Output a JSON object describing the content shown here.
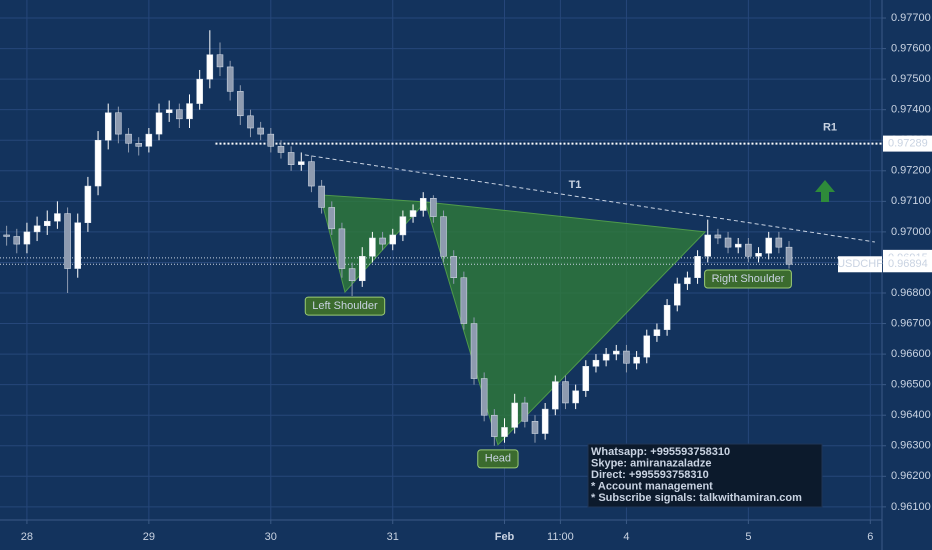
{
  "chart_data": {
    "type": "candlestick",
    "symbol": "USDCHF",
    "up_color": "#ffffff",
    "down_color": "#8e9bb0",
    "grid": true,
    "x": [
      -4,
      -2,
      0,
      2,
      4,
      6,
      8,
      10,
      12,
      14,
      16,
      18,
      20,
      22,
      24,
      26,
      28,
      30,
      32,
      34,
      36,
      38,
      40,
      42,
      44,
      46,
      48,
      50,
      52,
      54,
      56,
      58,
      60,
      62,
      64,
      66,
      68,
      70,
      72,
      74,
      76,
      78,
      80,
      82,
      84,
      86,
      88,
      90,
      92,
      94,
      96,
      98,
      100,
      102,
      104,
      106,
      108,
      110,
      112,
      114,
      116,
      118,
      120,
      122,
      124,
      126,
      128,
      130,
      132,
      134,
      136,
      138,
      140,
      142,
      144,
      146,
      148,
      150
    ],
    "open": [
      0.9699,
      0.96985,
      0.9696,
      0.97,
      0.9702,
      0.97035,
      0.9706,
      0.9688,
      0.9703,
      0.9715,
      0.973,
      0.9739,
      0.9732,
      0.9729,
      0.9728,
      0.9732,
      0.9739,
      0.974,
      0.9737,
      0.9742,
      0.975,
      0.9758,
      0.9754,
      0.9746,
      0.9738,
      0.9734,
      0.9732,
      0.9728,
      0.9726,
      0.9722,
      0.9723,
      0.9715,
      0.9708,
      0.9701,
      0.9688,
      0.9684,
      0.9692,
      0.9698,
      0.9696,
      0.9699,
      0.9705,
      0.9707,
      0.9711,
      0.9705,
      0.9692,
      0.9685,
      0.967,
      0.9652,
      0.964,
      0.9633,
      0.9636,
      0.9644,
      0.9638,
      0.9634,
      0.9642,
      0.9651,
      0.9644,
      0.9648,
      0.9656,
      0.9658,
      0.966,
      0.9661,
      0.9657,
      0.9659,
      0.9666,
      0.9668,
      0.9676,
      0.9683,
      0.9685,
      0.9692,
      0.9699,
      0.9698,
      0.9695,
      0.9696,
      0.9692,
      0.9693,
      0.9698,
      0.9695
    ],
    "high": [
      0.9702,
      0.9701,
      0.9703,
      0.9705,
      0.9707,
      0.971,
      0.9708,
      0.9706,
      0.9718,
      0.9733,
      0.9742,
      0.9741,
      0.9734,
      0.9731,
      0.9734,
      0.9742,
      0.9743,
      0.9742,
      0.9745,
      0.9753,
      0.9766,
      0.9762,
      0.9756,
      0.9748,
      0.974,
      0.9736,
      0.9734,
      0.973,
      0.9728,
      0.9726,
      0.9725,
      0.9717,
      0.971,
      0.9703,
      0.969,
      0.9695,
      0.97,
      0.97,
      0.9701,
      0.9707,
      0.9709,
      0.9713,
      0.9712,
      0.9707,
      0.9694,
      0.9687,
      0.9672,
      0.9654,
      0.9642,
      0.9639,
      0.9647,
      0.9646,
      0.964,
      0.9644,
      0.9653,
      0.9653,
      0.965,
      0.9658,
      0.966,
      0.9662,
      0.9663,
      0.9663,
      0.9661,
      0.9668,
      0.967,
      0.9678,
      0.9685,
      0.9687,
      0.9694,
      0.9704,
      0.9701,
      0.97,
      0.9698,
      0.9698,
      0.9695,
      0.97,
      0.97,
      0.9697
    ],
    "low": [
      0.96955,
      0.9693,
      0.9693,
      0.9697,
      0.9699,
      0.9701,
      0.968,
      0.9685,
      0.97,
      0.9712,
      0.9727,
      0.9729,
      0.9726,
      0.9725,
      0.9726,
      0.973,
      0.9736,
      0.9734,
      0.9734,
      0.974,
      0.9747,
      0.9751,
      0.9743,
      0.9735,
      0.9731,
      0.973,
      0.9726,
      0.9724,
      0.972,
      0.972,
      0.9713,
      0.9706,
      0.9699,
      0.9685,
      0.9679,
      0.9682,
      0.969,
      0.9694,
      0.9694,
      0.9697,
      0.9703,
      0.9705,
      0.9703,
      0.969,
      0.9683,
      0.9668,
      0.965,
      0.9638,
      0.963,
      0.9631,
      0.9634,
      0.9636,
      0.9631,
      0.9632,
      0.964,
      0.9642,
      0.9642,
      0.9646,
      0.9654,
      0.9656,
      0.9658,
      0.9654,
      0.9655,
      0.9657,
      0.9664,
      0.9666,
      0.9674,
      0.9681,
      0.9683,
      0.969,
      0.9696,
      0.9693,
      0.9693,
      0.969,
      0.969,
      0.9691,
      0.9693,
      0.9688
    ],
    "close": [
      0.96985,
      0.9696,
      0.97,
      0.9702,
      0.97035,
      0.9706,
      0.9688,
      0.9703,
      0.9715,
      0.973,
      0.9739,
      0.9732,
      0.9729,
      0.9728,
      0.9732,
      0.9739,
      0.974,
      0.9737,
      0.9742,
      0.975,
      0.9758,
      0.9754,
      0.9746,
      0.9738,
      0.9734,
      0.9732,
      0.9728,
      0.9726,
      0.9722,
      0.9723,
      0.9715,
      0.9708,
      0.9701,
      0.9688,
      0.9684,
      0.9692,
      0.9698,
      0.9696,
      0.9699,
      0.9705,
      0.9707,
      0.9711,
      0.9705,
      0.9692,
      0.9685,
      0.967,
      0.9652,
      0.964,
      0.9633,
      0.9636,
      0.9644,
      0.9638,
      0.9634,
      0.9642,
      0.9651,
      0.9644,
      0.9648,
      0.9656,
      0.9658,
      0.966,
      0.9661,
      0.9657,
      0.9659,
      0.9666,
      0.9668,
      0.9676,
      0.9683,
      0.9685,
      0.9692,
      0.9699,
      0.9698,
      0.9695,
      0.9696,
      0.9692,
      0.9693,
      0.9698,
      0.9695,
      0.96894
    ],
    "xlim": [
      -5.3,
      168.3
    ],
    "xticks": [
      {
        "value": 0,
        "label": "28"
      },
      {
        "value": 24,
        "label": "29"
      },
      {
        "value": 48,
        "label": "30"
      },
      {
        "value": 72,
        "label": "31"
      },
      {
        "value": 94,
        "label": "Feb"
      },
      {
        "value": 105,
        "label": "11:00"
      },
      {
        "value": 118,
        "label": "4"
      },
      {
        "value": 142,
        "label": "5"
      },
      {
        "value": 166,
        "label": "6"
      }
    ],
    "ylim": [
      0.96057,
      0.97759
    ],
    "yticks": [
      {
        "value": 0.961,
        "label": "0.96100"
      },
      {
        "value": 0.962,
        "label": "0.96200"
      },
      {
        "value": 0.963,
        "label": "0.96300"
      },
      {
        "value": 0.964,
        "label": "0.96400"
      },
      {
        "value": 0.965,
        "label": "0.96500"
      },
      {
        "value": 0.966,
        "label": "0.96600"
      },
      {
        "value": 0.967,
        "label": "0.96700"
      },
      {
        "value": 0.968,
        "label": "0.96800"
      },
      {
        "value": 0.969,
        "label": "0.96900"
      },
      {
        "value": 0.97,
        "label": "0.97000"
      },
      {
        "value": 0.971,
        "label": "0.97100"
      },
      {
        "value": 0.972,
        "label": "0.97200"
      },
      {
        "value": 0.973,
        "label": "0.97300"
      },
      {
        "value": 0.974,
        "label": "0.97400"
      },
      {
        "value": 0.975,
        "label": "0.97500"
      },
      {
        "value": 0.976,
        "label": "0.97600"
      },
      {
        "value": 0.977,
        "label": "0.97700"
      }
    ],
    "reference_line": 0.96915,
    "annotations": {
      "resistance": {
        "label": "R1",
        "value": 0.97289
      },
      "trendline": {
        "label": "T1",
        "x": [
          54.7,
          166.9
        ],
        "y": [
          0.97252,
          0.96967
        ]
      },
      "pattern": [
        {
          "label": "Left Shoulder",
          "x": [
            57.7,
            62.6,
            78.4
          ],
          "y": [
            0.97121,
            0.96803,
            0.97098
          ]
        },
        {
          "label": "Head",
          "x": [
            78.4,
            92.7,
            133.5
          ],
          "y": [
            0.97098,
            0.96303,
            0.97
          ]
        }
      ],
      "right_shoulder_label": "Right Shoulder",
      "info_box": [
        "Whatsapp: +995593758310",
        "Skype: amiranazaladze",
        "Direct: +995593758310",
        "* Account management",
        "* Subscribe signals: talkwithamiran.com"
      ]
    }
  }
}
